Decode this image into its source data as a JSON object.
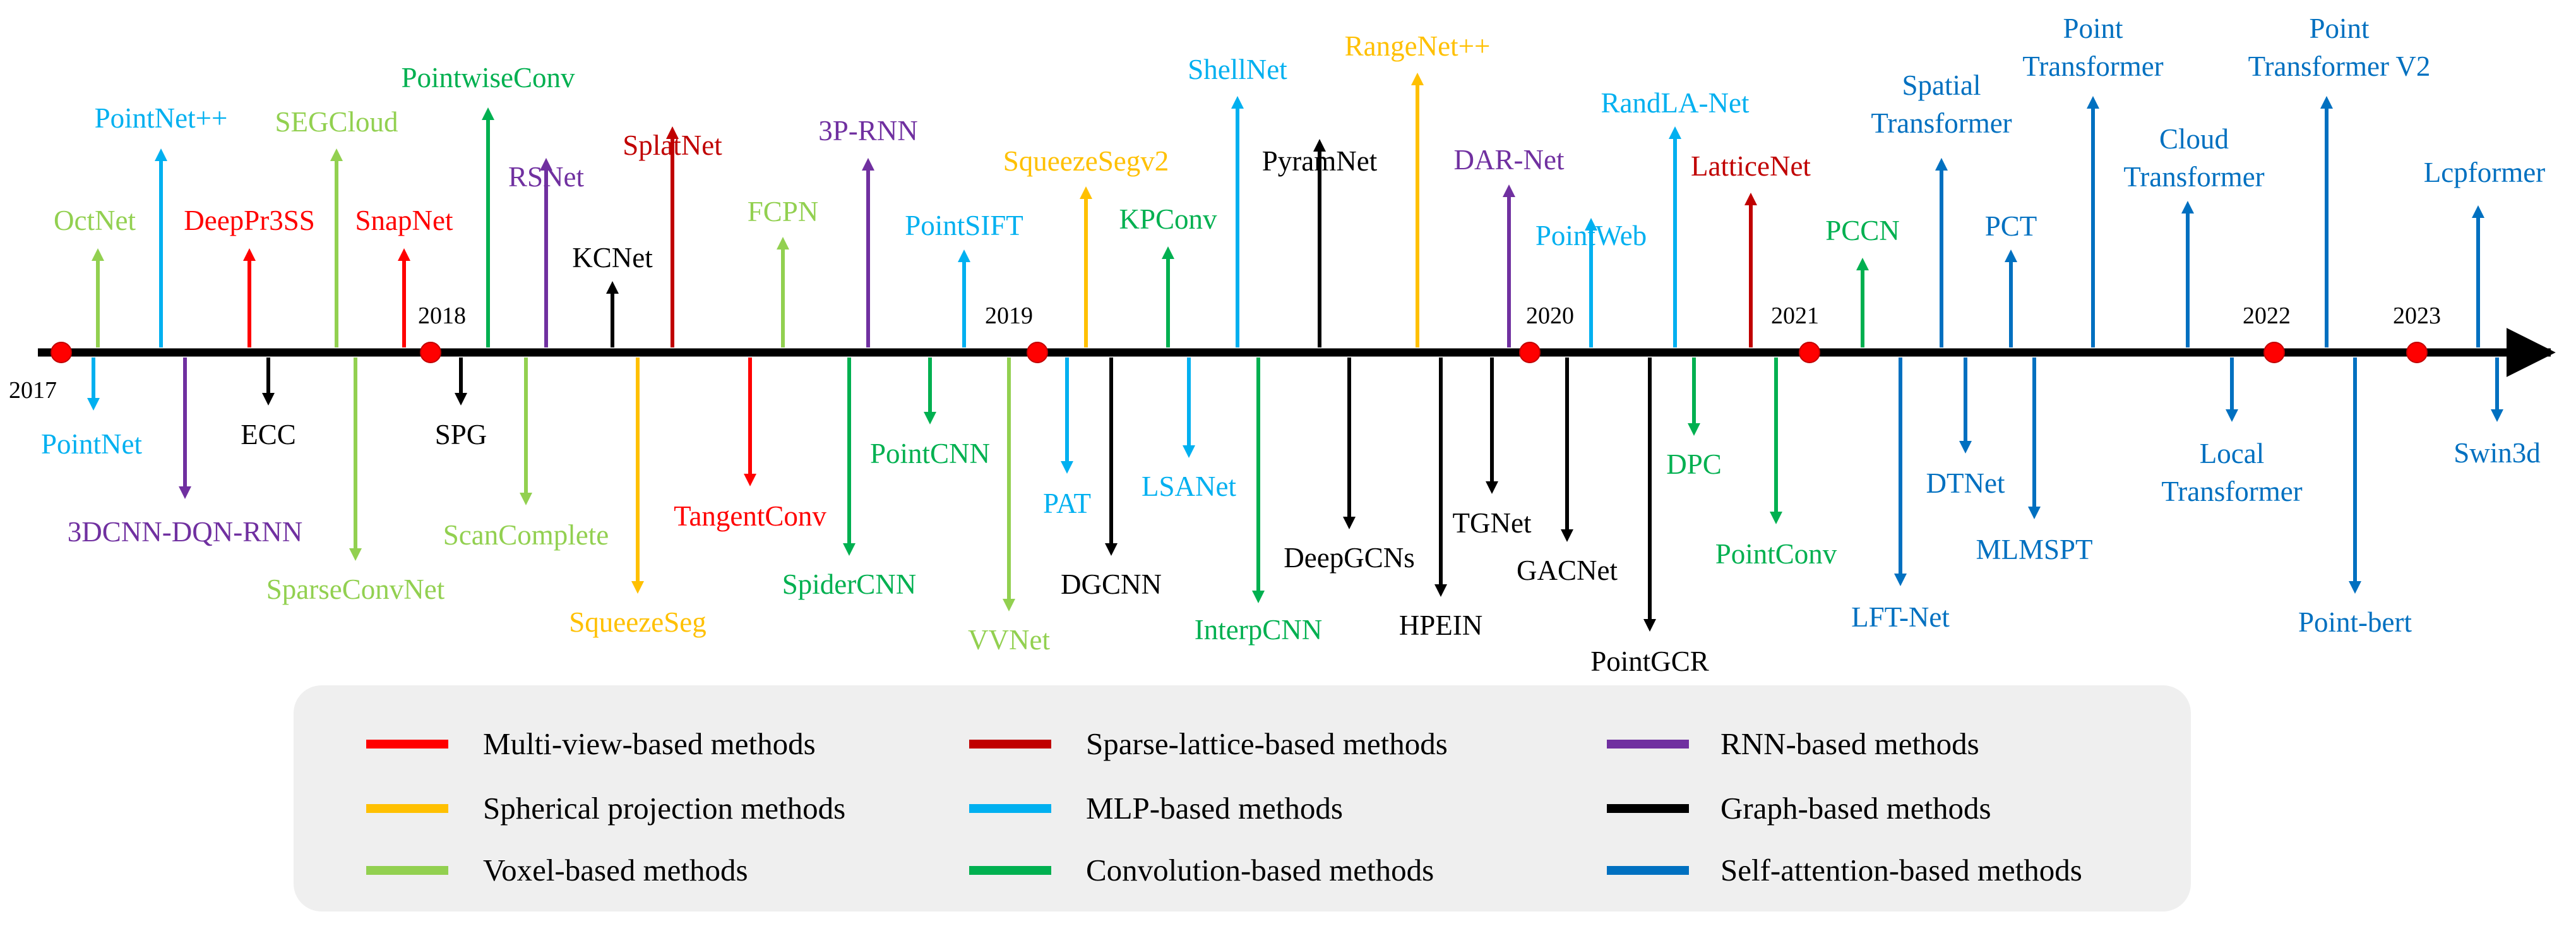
{
  "colors": {
    "multiview": "#ff0000",
    "spherical": "#ffc000",
    "voxel": "#92d050",
    "sparse": "#c00000",
    "mlp": "#00b0f0",
    "conv": "#00b050",
    "rnn": "#7030a0",
    "graph": "#000000",
    "attention": "#0070c0",
    "axis": "#000000",
    "year_dot": "#ff0000",
    "legend_bg": "#efefef"
  },
  "years": [
    "2017",
    "2018",
    "2019",
    "2020",
    "2021",
    "2022",
    "2023"
  ],
  "methods": [
    {
      "name": "PointNet",
      "lines": [
        "PointNet"
      ],
      "category": "mlp"
    },
    {
      "name": "OctNet",
      "lines": [
        "OctNet"
      ],
      "category": "voxel"
    },
    {
      "name": "PointNet++",
      "lines": [
        "PointNet++"
      ],
      "category": "mlp"
    },
    {
      "name": "3DCNN-DQN-RNN",
      "lines": [
        "3DCNN-DQN-RNN"
      ],
      "category": "rnn"
    },
    {
      "name": "DeepPr3SS",
      "lines": [
        "DeepPr3SS"
      ],
      "category": "multiview"
    },
    {
      "name": "ECC",
      "lines": [
        "ECC"
      ],
      "category": "graph"
    },
    {
      "name": "SEGCloud",
      "lines": [
        "SEGCloud"
      ],
      "category": "voxel"
    },
    {
      "name": "SparseConvNet",
      "lines": [
        "SparseConvNet"
      ],
      "category": "voxel"
    },
    {
      "name": "SnapNet",
      "lines": [
        "SnapNet"
      ],
      "category": "multiview"
    },
    {
      "name": "SPG",
      "lines": [
        "SPG"
      ],
      "category": "graph"
    },
    {
      "name": "PointwiseConv",
      "lines": [
        "PointwiseConv"
      ],
      "category": "conv"
    },
    {
      "name": "ScanComplete",
      "lines": [
        "ScanComplete"
      ],
      "category": "voxel"
    },
    {
      "name": "RSNet",
      "lines": [
        "RSNet"
      ],
      "category": "rnn"
    },
    {
      "name": "KCNet",
      "lines": [
        "KCNet"
      ],
      "category": "graph"
    },
    {
      "name": "SqueezeSeg",
      "lines": [
        "SqueezeSeg"
      ],
      "category": "spherical"
    },
    {
      "name": "SplatNet",
      "lines": [
        "SplatNet"
      ],
      "category": "sparse"
    },
    {
      "name": "TangentConv",
      "lines": [
        "TangentConv"
      ],
      "category": "multiview"
    },
    {
      "name": "FCPN",
      "lines": [
        "FCPN"
      ],
      "category": "voxel"
    },
    {
      "name": "SpiderCNN",
      "lines": [
        "SpiderCNN"
      ],
      "category": "conv"
    },
    {
      "name": "3P-RNN",
      "lines": [
        "3P-RNN"
      ],
      "category": "rnn"
    },
    {
      "name": "PointCNN",
      "lines": [
        "PointCNN"
      ],
      "category": "conv"
    },
    {
      "name": "PointSIFT",
      "lines": [
        "PointSIFT"
      ],
      "category": "mlp"
    },
    {
      "name": "VVNet",
      "lines": [
        "VVNet"
      ],
      "category": "voxel"
    },
    {
      "name": "PAT",
      "lines": [
        "PAT"
      ],
      "category": "mlp"
    },
    {
      "name": "SqueezeSegv2",
      "lines": [
        "SqueezeSegv2"
      ],
      "category": "spherical"
    },
    {
      "name": "DGCNN",
      "lines": [
        "DGCNN"
      ],
      "category": "graph"
    },
    {
      "name": "KPConv",
      "lines": [
        "KPConv"
      ],
      "category": "conv"
    },
    {
      "name": "LSANet",
      "lines": [
        "LSANet"
      ],
      "category": "mlp"
    },
    {
      "name": "ShellNet",
      "lines": [
        "ShellNet"
      ],
      "category": "mlp"
    },
    {
      "name": "InterpCNN",
      "lines": [
        "InterpCNN"
      ],
      "category": "conv"
    },
    {
      "name": "PyramNet",
      "lines": [
        "PyramNet"
      ],
      "category": "graph"
    },
    {
      "name": "DeepGCNs",
      "lines": [
        "DeepGCNs"
      ],
      "category": "graph"
    },
    {
      "name": "RangeNet++",
      "lines": [
        "RangeNet++"
      ],
      "category": "spherical"
    },
    {
      "name": "HPEIN",
      "lines": [
        "HPEIN"
      ],
      "category": "graph"
    },
    {
      "name": "TGNet",
      "lines": [
        "TGNet"
      ],
      "category": "graph"
    },
    {
      "name": "DAR-Net",
      "lines": [
        "DAR-Net"
      ],
      "category": "rnn"
    },
    {
      "name": "GACNet",
      "lines": [
        "GACNet"
      ],
      "category": "graph"
    },
    {
      "name": "PointWeb",
      "lines": [
        "PointWeb"
      ],
      "category": "mlp"
    },
    {
      "name": "PointGCR",
      "lines": [
        "PointGCR"
      ],
      "category": "graph"
    },
    {
      "name": "RandLA-Net",
      "lines": [
        "RandLA-Net"
      ],
      "category": "mlp"
    },
    {
      "name": "DPC",
      "lines": [
        "DPC"
      ],
      "category": "conv"
    },
    {
      "name": "LatticeNet",
      "lines": [
        "LatticeNet"
      ],
      "category": "sparse"
    },
    {
      "name": "PointConv",
      "lines": [
        "PointConv"
      ],
      "category": "conv"
    },
    {
      "name": "PCCN",
      "lines": [
        "PCCN"
      ],
      "category": "conv"
    },
    {
      "name": "LFT-Net",
      "lines": [
        "LFT-Net"
      ],
      "category": "attention"
    },
    {
      "name": "Spatial Transformer",
      "lines": [
        "Spatial",
        "Transformer"
      ],
      "category": "attention"
    },
    {
      "name": "DTNet",
      "lines": [
        "DTNet"
      ],
      "category": "attention"
    },
    {
      "name": "PCT",
      "lines": [
        "PCT"
      ],
      "category": "attention"
    },
    {
      "name": "MLMSPT",
      "lines": [
        "MLMSPT"
      ],
      "category": "attention"
    },
    {
      "name": "Point Transformer",
      "lines": [
        "Point",
        "Transformer"
      ],
      "category": "attention"
    },
    {
      "name": "Cloud Transformer",
      "lines": [
        "Cloud",
        "Transformer"
      ],
      "category": "attention"
    },
    {
      "name": "Local Transformer",
      "lines": [
        "Local",
        "Transformer"
      ],
      "category": "attention"
    },
    {
      "name": "Point Transformer V2",
      "lines": [
        "Point",
        "Transformer V2"
      ],
      "category": "attention"
    },
    {
      "name": "Point-bert",
      "lines": [
        "Point-bert"
      ],
      "category": "attention"
    },
    {
      "name": "Lcpformer",
      "lines": [
        "Lcpformer"
      ],
      "category": "attention"
    },
    {
      "name": "Swin3d",
      "lines": [
        "Swin3d"
      ],
      "category": "attention"
    }
  ],
  "legend": [
    {
      "label": "Multi-view-based methods",
      "category": "multiview"
    },
    {
      "label": "Sparse-lattice-based methods",
      "category": "sparse"
    },
    {
      "label": "RNN-based methods",
      "category": "rnn"
    },
    {
      "label": "Spherical projection methods",
      "category": "spherical"
    },
    {
      "label": "MLP-based methods",
      "category": "mlp"
    },
    {
      "label": "Graph-based methods",
      "category": "graph"
    },
    {
      "label": "Voxel-based methods",
      "category": "voxel"
    },
    {
      "label": "Convolution-based methods",
      "category": "conv"
    },
    {
      "label": "Self-attention-based methods",
      "category": "attention"
    }
  ]
}
